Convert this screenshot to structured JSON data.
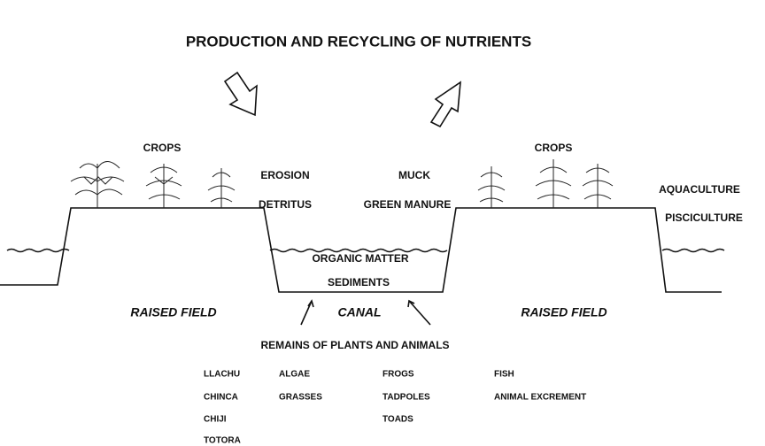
{
  "title": "PRODUCTION AND RECYCLING OF NUTRIENTS",
  "labels": [
    "CROPS",
    "CROPS",
    "EROSION",
    "DETRITUS",
    "MUCK",
    "GREEN MANURE",
    "AQUACULTURE",
    "PISCICULTURE",
    "ORGANIC MATTER",
    "SEDIMENTS"
  ],
  "places": [
    "RAISED FIELD",
    "CANAL",
    "RAISED FIELD"
  ],
  "remains": "REMAINS OF PLANTS AND ANIMALS",
  "lists": [
    [
      "LLACHU",
      "CHINCA",
      "CHIJI",
      "TOTORA"
    ],
    [
      "ALGAE",
      "GRASSES"
    ],
    [
      "FROGS",
      "TADPOLES",
      "TOADS"
    ],
    [
      "FISH",
      "ANIMAL EXCREMENT"
    ]
  ]
}
